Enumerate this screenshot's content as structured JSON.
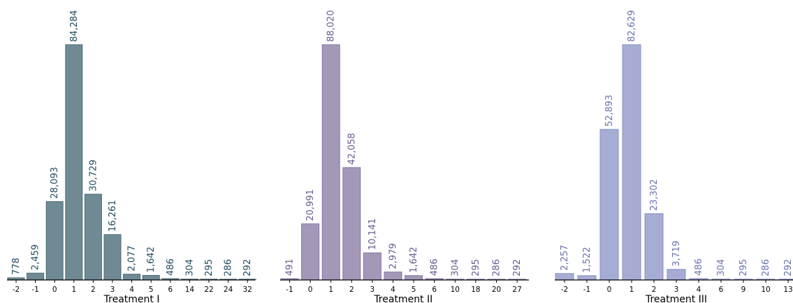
{
  "chart_data": [
    {
      "type": "bar",
      "xlabel": "Treatment I",
      "categories": [
        "-2",
        "-1",
        "0",
        "1",
        "2",
        "3",
        "4",
        "5",
        "6",
        "14",
        "22",
        "24",
        "32"
      ],
      "values": [
        778,
        2459,
        28093,
        84284,
        30729,
        16261,
        2077,
        1642,
        486,
        304,
        295,
        286,
        292
      ],
      "value_labels": [
        "778",
        "2,459",
        "28,093",
        "84,284",
        "30,729",
        "16,261",
        "2,077",
        "1,642",
        "486",
        "304",
        "295",
        "286",
        "292"
      ],
      "ylim": [
        0,
        84284
      ],
      "grid": false,
      "bar_color": "#6f8a94",
      "edge_color": "#4f6b76",
      "label_color": "#1f4a5e"
    },
    {
      "type": "bar",
      "xlabel": "Treatment II",
      "categories": [
        "-1",
        "0",
        "1",
        "2",
        "3",
        "4",
        "5",
        "6",
        "10",
        "18",
        "20",
        "27"
      ],
      "values": [
        491,
        20991,
        88020,
        42058,
        10141,
        2979,
        1642,
        486,
        304,
        295,
        286,
        292
      ],
      "value_labels": [
        "491",
        "20,991",
        "88,020",
        "42,058",
        "10,141",
        "2,979",
        "1,642",
        "486",
        "304",
        "295",
        "286",
        "292"
      ],
      "ylim": [
        0,
        88020
      ],
      "grid": false,
      "bar_color": "#a498b8",
      "edge_color": "#8576a3",
      "label_color": "#6a5a8e"
    },
    {
      "type": "bar",
      "xlabel": "Treatment III",
      "categories": [
        "-2",
        "-1",
        "0",
        "1",
        "2",
        "3",
        "4",
        "6",
        "9",
        "10",
        "13"
      ],
      "values": [
        2257,
        1522,
        52893,
        82629,
        23302,
        3719,
        486,
        304,
        295,
        286,
        292
      ],
      "value_labels": [
        "2,257",
        "1,522",
        "52,893",
        "82,629",
        "23,302",
        "3,719",
        "486",
        "304",
        "295",
        "286",
        "292"
      ],
      "ylim": [
        0,
        82629
      ],
      "grid": false,
      "bar_color": "#a6acd4",
      "edge_color": "#8790c4",
      "label_color": "#6a72ae"
    }
  ]
}
